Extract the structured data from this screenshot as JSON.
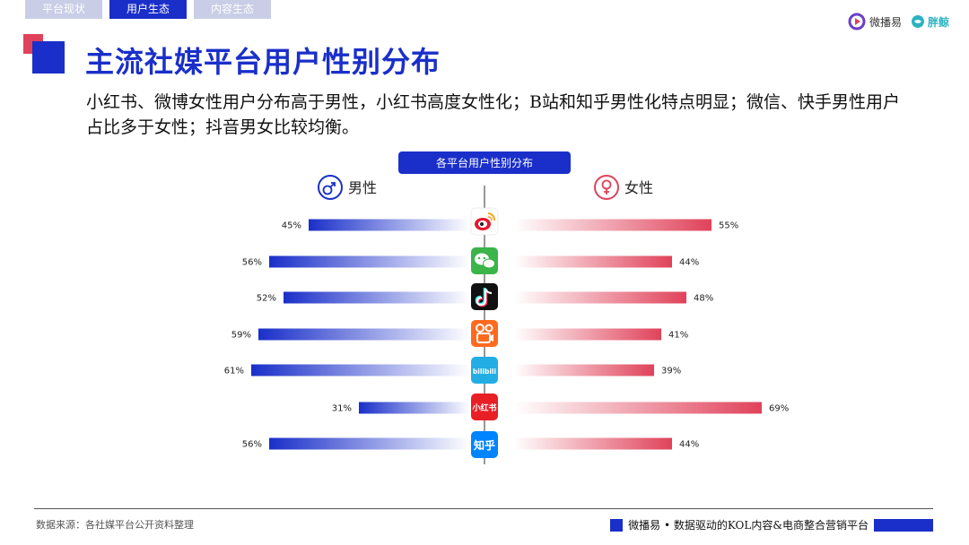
{
  "tabs": [
    {
      "label": "平台现状",
      "active": false
    },
    {
      "label": "用户生态",
      "active": true
    },
    {
      "label": "内容生态",
      "active": false
    }
  ],
  "brand": {
    "name1": "微播易",
    "name2": "胖鲸"
  },
  "title": "主流社媒平台用户性别分布",
  "description": "小红书、微博女性用户分布高于男性，小红书高度女性化；B站和知乎男性化特点明显；微信、快手男性用户占比多于女性；抖音男女比较均衡。",
  "footer": {
    "source": "数据来源：各社媒平台公开资料整理",
    "right_text": "微播易 • 数据驱动的KOL内容&电商整合营销平台"
  },
  "colors": {
    "male": "#1a2fc9",
    "female": "#e0425a",
    "accent": "#1a2fc9"
  },
  "chart_data": {
    "type": "bar",
    "title": "各平台用户性别分布",
    "categories": [
      "微博",
      "微信",
      "抖音",
      "快手",
      "bilibili",
      "小红书",
      "知乎"
    ],
    "category_icons": [
      "weibo-icon",
      "wechat-icon",
      "douyin-icon",
      "kuaishou-icon",
      "bilibili-icon",
      "xiaohongshu-icon",
      "zhihu-icon"
    ],
    "icon_labels": {
      "bilibili": "bilibili",
      "xiaohongshu": "小红书",
      "zhihu": "知乎"
    },
    "series": [
      {
        "name": "男性",
        "values": [
          45,
          56,
          52,
          59,
          61,
          31,
          56
        ]
      },
      {
        "name": "女性",
        "values": [
          55,
          44,
          48,
          41,
          39,
          69,
          44
        ]
      }
    ],
    "value_suffix": "%",
    "xlim": [
      0,
      100
    ]
  }
}
